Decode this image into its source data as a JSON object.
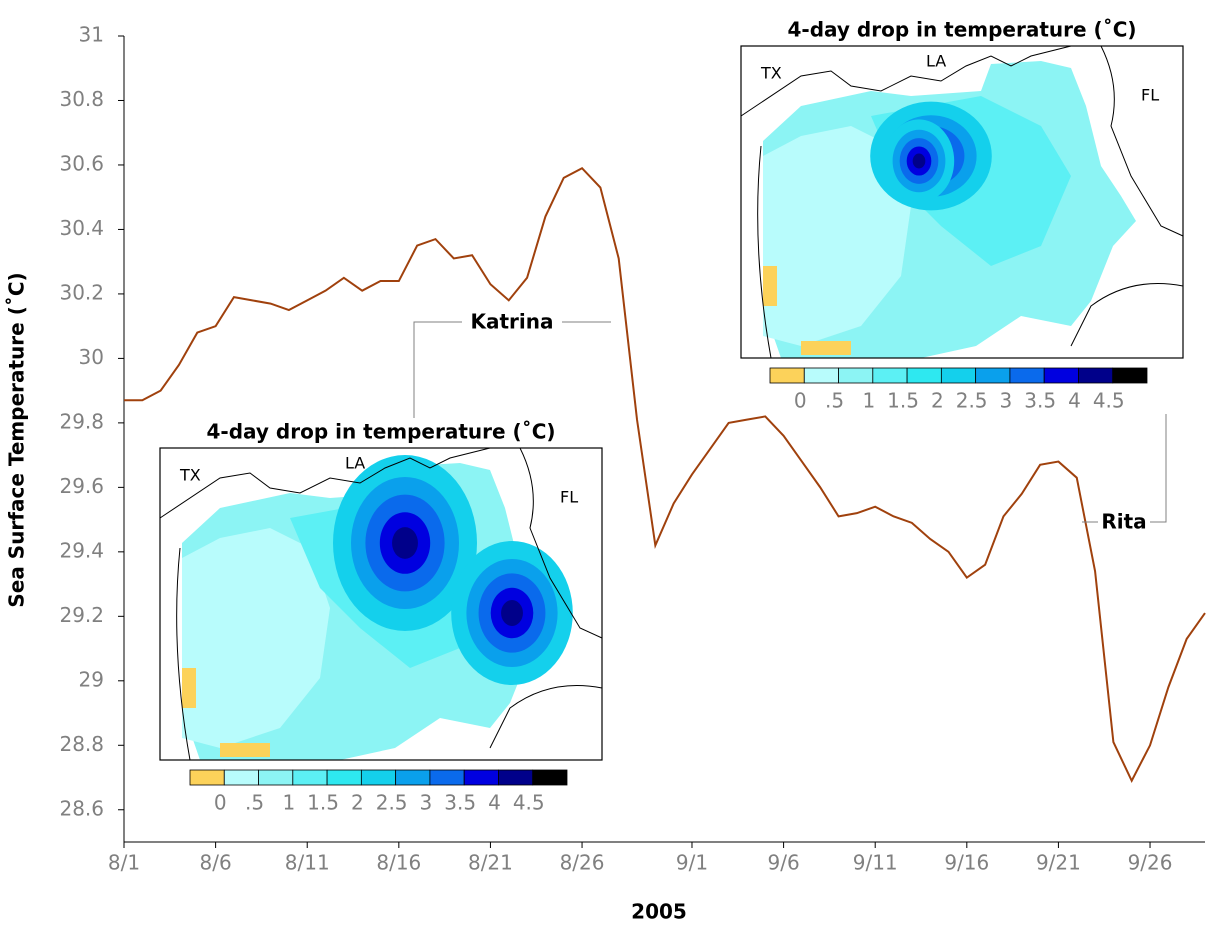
{
  "chart_data": {
    "type": "line",
    "x_label": "2005",
    "y_label": "Sea Surface Temperature (˚C)",
    "x": [
      0,
      1,
      2,
      3,
      4,
      5,
      6,
      7,
      8,
      9,
      10,
      11,
      12,
      13,
      14,
      15,
      16,
      17,
      18,
      19,
      20,
      21,
      22,
      23,
      24,
      25,
      26,
      27,
      28,
      29,
      30,
      31,
      32,
      33,
      34,
      35,
      36,
      37,
      38,
      39,
      40,
      41,
      42,
      43,
      44,
      45,
      46,
      47,
      48,
      49,
      50,
      51,
      52,
      53,
      54,
      55,
      56,
      57,
      58,
      59
    ],
    "values": [
      29.87,
      29.87,
      29.9,
      29.98,
      30.08,
      30.1,
      30.19,
      30.18,
      30.17,
      30.15,
      30.18,
      30.21,
      30.25,
      30.21,
      30.24,
      30.24,
      30.35,
      30.37,
      30.31,
      30.32,
      30.23,
      30.18,
      30.25,
      30.44,
      30.56,
      30.59,
      30.53,
      30.31,
      29.81,
      29.42,
      29.55,
      29.64,
      29.72,
      29.8,
      29.81,
      29.82,
      29.76,
      29.68,
      29.6,
      29.51,
      29.52,
      29.54,
      29.51,
      29.49,
      29.44,
      29.4,
      29.32,
      29.36,
      29.51,
      29.58,
      29.67,
      29.68,
      29.63,
      29.34,
      28.81,
      28.69,
      28.8,
      28.98,
      29.13,
      29.21
    ],
    "color": "#a0410d",
    "xlim": [
      0,
      59
    ],
    "xticks": [
      {
        "value": 0,
        "label": "8/1"
      },
      {
        "value": 5,
        "label": "8/6"
      },
      {
        "value": 10,
        "label": "8/11"
      },
      {
        "value": 15,
        "label": "8/16"
      },
      {
        "value": 20,
        "label": "8/21"
      },
      {
        "value": 25,
        "label": "8/26"
      },
      {
        "value": 31,
        "label": "9/1"
      },
      {
        "value": 36,
        "label": "9/6"
      },
      {
        "value": 41,
        "label": "9/11"
      },
      {
        "value": 46,
        "label": "9/16"
      },
      {
        "value": 51,
        "label": "9/21"
      },
      {
        "value": 56,
        "label": "9/26"
      }
    ],
    "ylim": [
      28.5,
      31
    ],
    "yticks": [
      28.6,
      28.8,
      29,
      29.2,
      29.4,
      29.6,
      29.8,
      30,
      30.2,
      30.4,
      30.6,
      30.8,
      31
    ],
    "annotations": [
      {
        "text": "Katrina"
      },
      {
        "text": "Rita"
      }
    ],
    "insets": [
      {
        "title": "4-day drop in temperature (˚C)",
        "region_labels": [
          "TX",
          "LA",
          "FL"
        ],
        "colorbar_labels": [
          "0",
          ".5",
          "1",
          "1.5",
          "2",
          "2.5",
          "3",
          "3.5",
          "4",
          "4.5"
        ]
      },
      {
        "title": "4-day drop in temperature (˚C)",
        "region_labels": [
          "TX",
          "LA",
          "FL"
        ],
        "colorbar_labels": [
          "0",
          ".5",
          "1",
          "1.5",
          "2",
          "2.5",
          "3",
          "3.5",
          "4",
          "4.5"
        ]
      }
    ],
    "colorbar_colors": [
      "#fcd25a",
      "#b8fcfc",
      "#8cf4f4",
      "#5cf0f4",
      "#2ee8f0",
      "#14d0ec",
      "#0aa0ec",
      "#0a6aec",
      "#0000e0",
      "#00008a",
      "#000000"
    ]
  }
}
